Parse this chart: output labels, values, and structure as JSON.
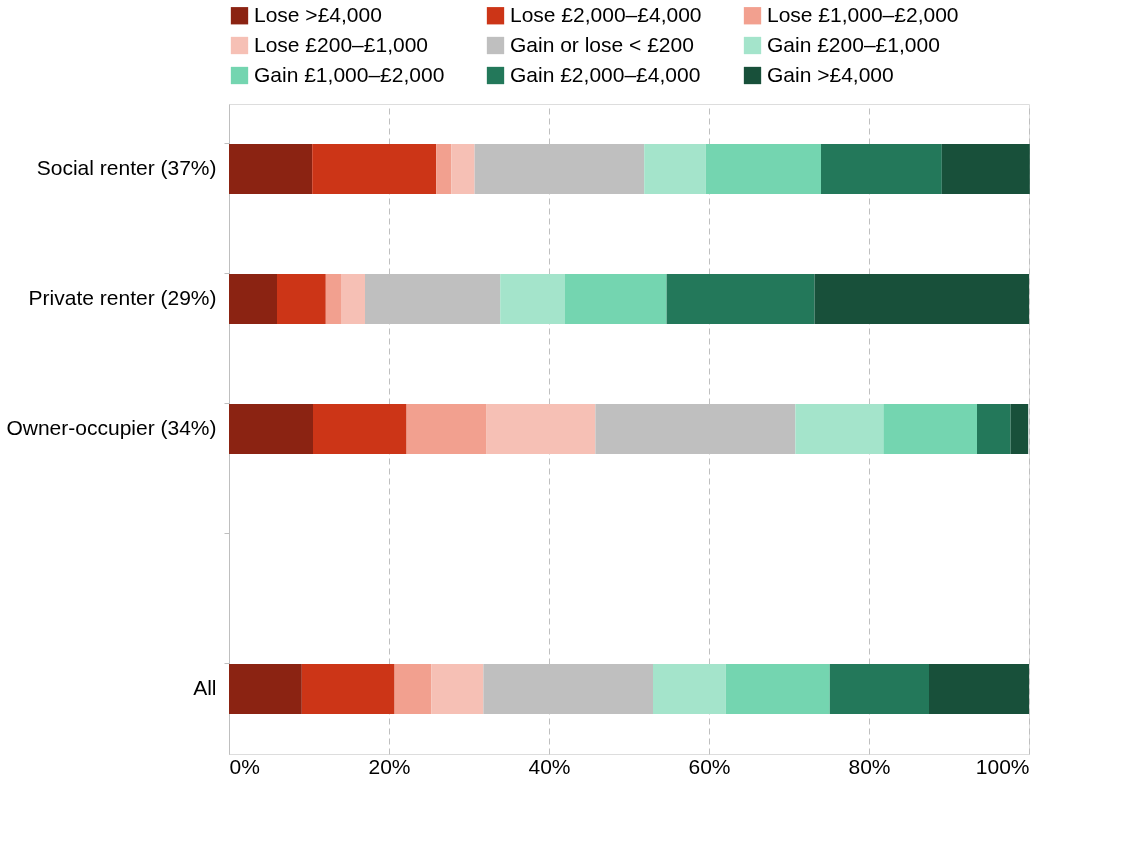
{
  "chart_data": {
    "type": "bar",
    "orientation": "horizontal",
    "stacked": true,
    "categories": [
      "Social renter (37%)",
      "Private renter (29%)",
      "Owner-occupier (34%)",
      null,
      "All"
    ],
    "series": [
      {
        "name": "Lose >£4,000",
        "color": "#8b2312",
        "values": [
          10.4,
          6.0,
          10.5,
          null,
          9.1
        ]
      },
      {
        "name": "Lose £2,000–£4,000",
        "color": "#cc3517",
        "values": [
          15.5,
          6.1,
          11.7,
          null,
          11.6
        ]
      },
      {
        "name": "Lose £1,000–£2,000",
        "color": "#f2a08f",
        "values": [
          1.9,
          1.9,
          10.0,
          null,
          4.6
        ]
      },
      {
        "name": "Lose £200–£1,000",
        "color": "#f6c0b5",
        "values": [
          2.9,
          3.0,
          13.6,
          null,
          6.5
        ]
      },
      {
        "name": "Gain or lose < £200",
        "color": "#bfbfbf",
        "values": [
          21.2,
          16.9,
          25.0,
          null,
          21.2
        ]
      },
      {
        "name": "Gain £200–£1,000",
        "color": "#a4e4cb",
        "values": [
          7.7,
          8.1,
          11.0,
          null,
          9.1
        ]
      },
      {
        "name": "Gain £1,000–£2,000",
        "color": "#74d5b0",
        "values": [
          14.4,
          12.7,
          11.7,
          null,
          13.0
        ]
      },
      {
        "name": "Gain £2,000–£4,000",
        "color": "#23785a",
        "values": [
          15.1,
          18.5,
          4.2,
          null,
          12.4
        ]
      },
      {
        "name": "Gain >£4,000",
        "color": "#18503a",
        "values": [
          11.0,
          26.8,
          2.2,
          null,
          12.5
        ]
      }
    ],
    "xlim": [
      0,
      100
    ],
    "xticks": [
      {
        "value": 0,
        "label": "0%"
      },
      {
        "value": 20,
        "label": "20%"
      },
      {
        "value": 40,
        "label": "40%"
      },
      {
        "value": 60,
        "label": "60%"
      },
      {
        "value": 80,
        "label": "80%"
      },
      {
        "value": 100,
        "label": "100%"
      }
    ],
    "grid": "x",
    "legend": "top"
  }
}
